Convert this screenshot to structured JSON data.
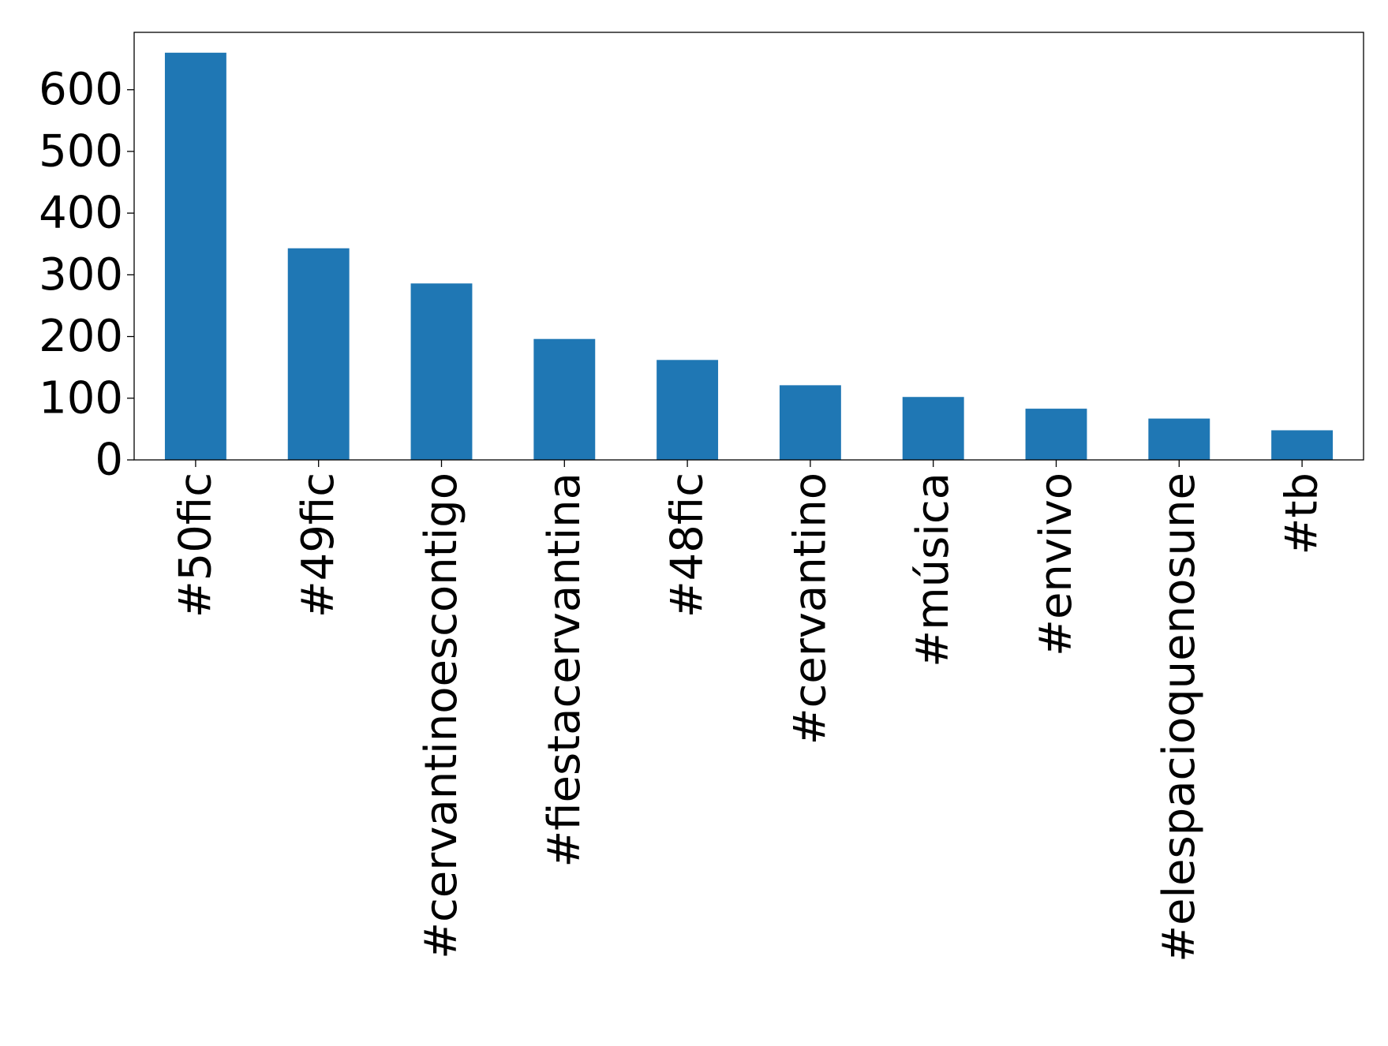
{
  "chart_data": {
    "type": "bar",
    "title": "",
    "xlabel": "",
    "ylabel": "",
    "categories": [
      "#50fic",
      "#49fic",
      "#cervantinoescontigo",
      "#fiestacervantina",
      "#48fic",
      "#cervantino",
      "#música",
      "#envivo",
      "#elespacioquenosune",
      "#tb"
    ],
    "values": [
      660,
      343,
      286,
      196,
      162,
      121,
      102,
      83,
      67,
      48
    ],
    "ylim": [
      0,
      693
    ],
    "yticks": [
      0,
      100,
      200,
      300,
      400,
      500,
      600
    ],
    "grid": false,
    "legend": "none",
    "colors": {
      "bar": "#1f77b4",
      "axis": "#000000",
      "background": "#ffffff"
    }
  }
}
